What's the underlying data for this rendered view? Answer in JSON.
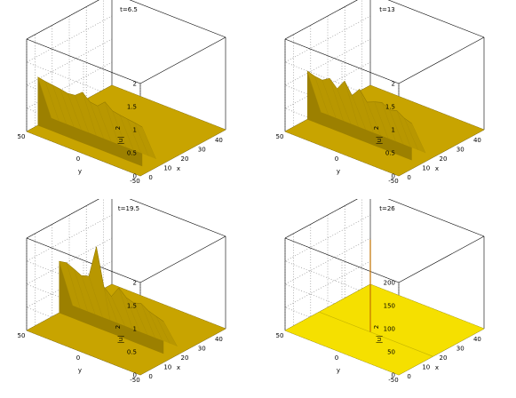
{
  "chart_data": [
    {
      "type": "surface3d",
      "title": "t=6.5",
      "xlabel": "x",
      "ylabel": "y",
      "zlabel": "|u|²",
      "zlabel_main": "|u|",
      "zlabel_exp": "2",
      "xlim": [
        -5,
        45
      ],
      "ylim": [
        -50,
        50
      ],
      "zlim": [
        0,
        2
      ],
      "xticks": [
        "0",
        "10",
        "20",
        "30",
        "40"
      ],
      "yticks": [
        "50",
        "0",
        "-50"
      ],
      "zticks": [
        "0",
        "0.5",
        "1",
        "1.5",
        "2"
      ],
      "surface_color": "#c8a400",
      "wall": {
        "x_start": 1.5,
        "x_end": 9.5,
        "profile": [
          1.05,
          1.02,
          1.0,
          0.98,
          0.95,
          0.97,
          1.1,
          0.95,
          0.93,
          1.08,
          0.95,
          0.92,
          0.9,
          0.88,
          0.85
        ]
      }
    },
    {
      "type": "surface3d",
      "title": "t=13",
      "xlabel": "x",
      "ylabel": "y",
      "zlabel": "|u|²",
      "zlabel_main": "|u|",
      "zlabel_exp": "2",
      "xlim": [
        -5,
        45
      ],
      "ylim": [
        -50,
        50
      ],
      "zlim": [
        0,
        2
      ],
      "xticks": [
        "0",
        "10",
        "20",
        "30",
        "40"
      ],
      "yticks": [
        "50",
        "0",
        "-50"
      ],
      "zticks": [
        "0",
        "0.5",
        "1",
        "1.5",
        "2"
      ],
      "surface_color": "#c8a400",
      "wall": {
        "x_start": 8,
        "x_end": 16,
        "profile": [
          1.05,
          1.0,
          0.98,
          1.08,
          0.92,
          1.15,
          0.9,
          1.1,
          0.88,
          0.95,
          1.0,
          0.9,
          0.95,
          0.85,
          0.8
        ]
      }
    },
    {
      "type": "surface3d",
      "title": "t=19.5",
      "xlabel": "x",
      "ylabel": "y",
      "zlabel": "|u|²",
      "zlabel_main": "|u|",
      "zlabel_exp": "2",
      "xlim": [
        -5,
        45
      ],
      "ylim": [
        -50,
        50
      ],
      "zlim": [
        0,
        2
      ],
      "xticks": [
        "0",
        "10",
        "20",
        "30",
        "40"
      ],
      "yticks": [
        "50",
        "0",
        "-50"
      ],
      "zticks": [
        "0",
        "0.5",
        "1",
        "1.5",
        "2"
      ],
      "surface_color": "#c8a400",
      "wall": {
        "x_start": 14,
        "x_end": 22,
        "profile": [
          1.12,
          1.15,
          1.08,
          1.0,
          1.05,
          1.75,
          0.95,
          0.8,
          1.05,
          0.9,
          0.85,
          0.9,
          0.8,
          0.75,
          0.7
        ]
      }
    },
    {
      "type": "surface3d",
      "title": "t=26",
      "xlabel": "x",
      "ylabel": "y",
      "zlabel": "|u|²",
      "zlabel_main": "|u|",
      "zlabel_exp": "2",
      "xlim": [
        -5,
        45
      ],
      "ylim": [
        -50,
        50
      ],
      "zlim": [
        0,
        200
      ],
      "xticks": [
        "0",
        "10",
        "20",
        "30",
        "40"
      ],
      "yticks": [
        "50",
        "0",
        "-50"
      ],
      "zticks": [
        "0",
        "50",
        "100",
        "150",
        "200"
      ],
      "surface_color": "#f5e000",
      "spike": {
        "x": 15,
        "y": 5,
        "height": 200
      }
    }
  ]
}
